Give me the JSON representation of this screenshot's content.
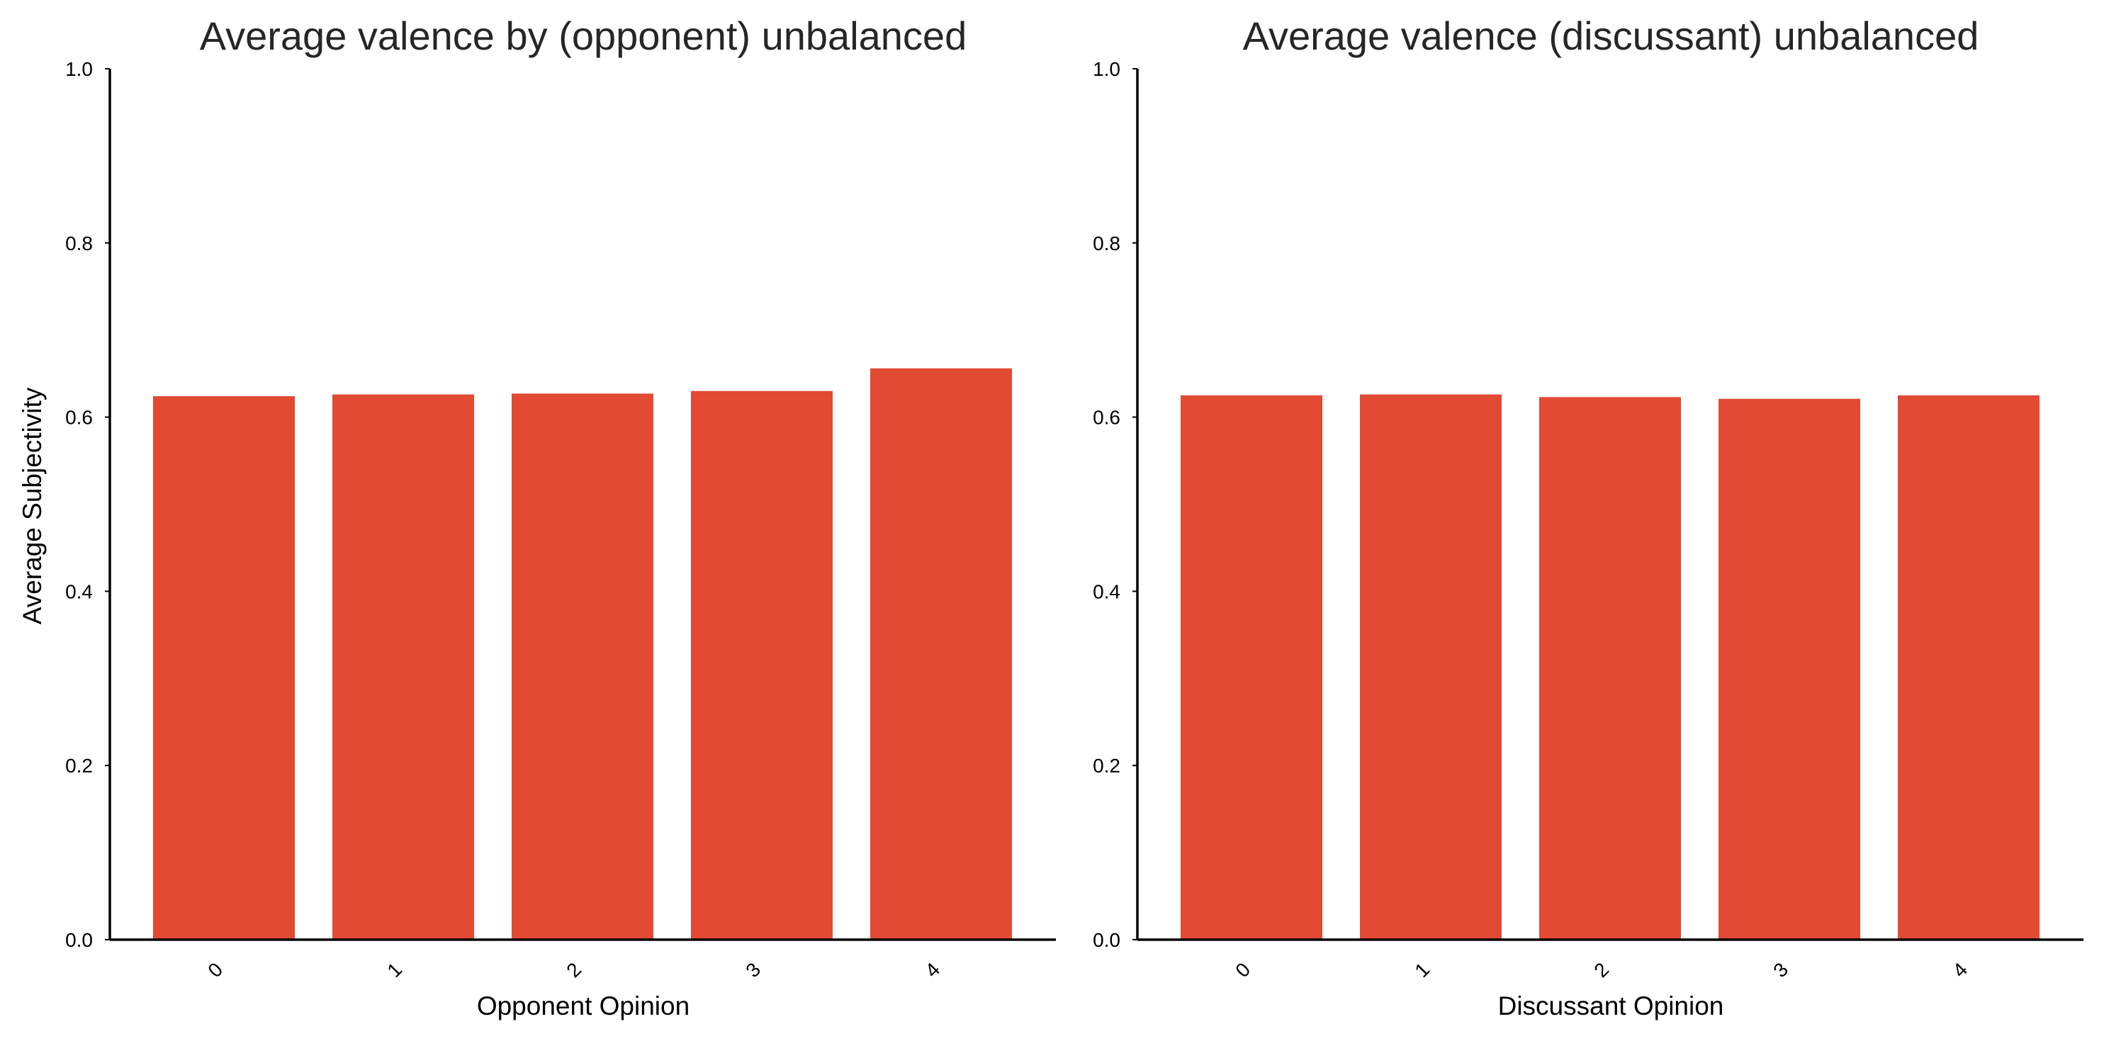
{
  "colors": {
    "bar": "#e24a33",
    "axis": "#000000",
    "title": "#262626",
    "background": "#ffffff"
  },
  "chart_data": [
    {
      "type": "bar",
      "title": "Average valence by (opponent) unbalanced",
      "xlabel": "Opponent Opinion",
      "ylabel": "Average Subjectivity",
      "categories": [
        "0",
        "1",
        "2",
        "3",
        "4"
      ],
      "values": [
        0.624,
        0.626,
        0.627,
        0.63,
        0.656
      ],
      "ylim": [
        0,
        1
      ],
      "yticks": [
        "0.0",
        "0.2",
        "0.4",
        "0.6",
        "0.8",
        "1.0"
      ],
      "xtick_rotation": 45,
      "grid": false,
      "legend": "none"
    },
    {
      "type": "bar",
      "title": "Average valence (discussant) unbalanced",
      "xlabel": "Discussant Opinion",
      "ylabel": "",
      "categories": [
        "0",
        "1",
        "2",
        "3",
        "4"
      ],
      "values": [
        0.625,
        0.626,
        0.623,
        0.621,
        0.625
      ],
      "ylim": [
        0,
        1
      ],
      "yticks": [
        "0.0",
        "0.2",
        "0.4",
        "0.6",
        "0.8",
        "1.0"
      ],
      "xtick_rotation": 45,
      "grid": false,
      "legend": "none"
    }
  ]
}
